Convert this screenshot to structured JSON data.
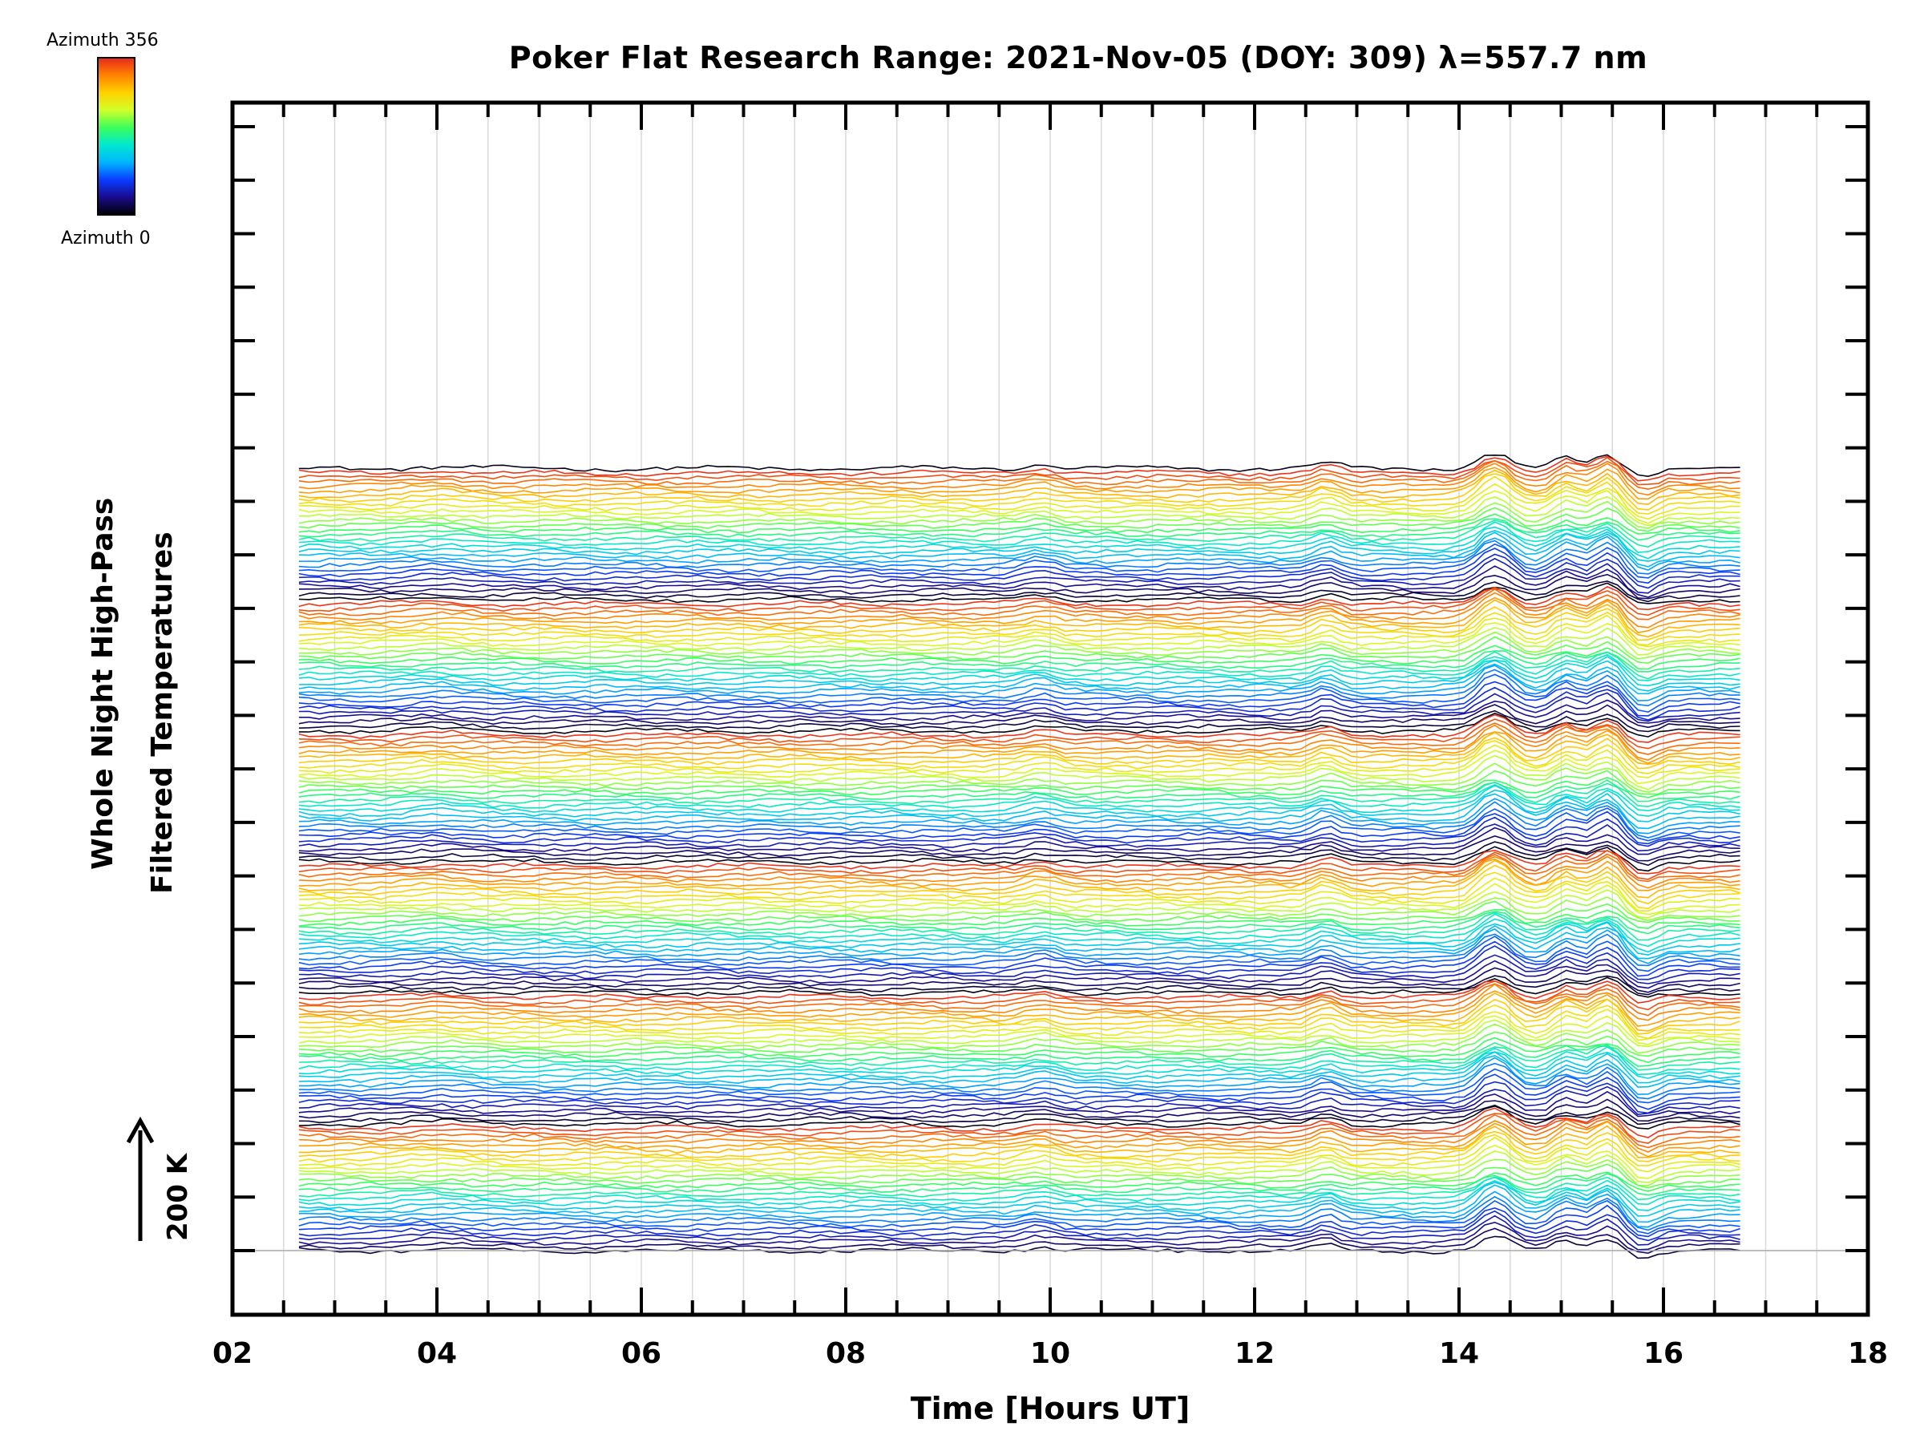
{
  "colors": {
    "frame": "#000000",
    "gridline": "#d9d9d9",
    "colormap": [
      "#000000",
      "#1a0a8c",
      "#0a3cff",
      "#00b4ff",
      "#00e8d0",
      "#3cff5a",
      "#d2ff28",
      "#ffd200",
      "#ff8200",
      "#e6281e"
    ]
  },
  "colorbar": {
    "top_label": "Azimuth 356",
    "bottom_label": "Azimuth 0"
  },
  "scale_bar": {
    "label": "200 K"
  },
  "chart_data": {
    "type": "line",
    "title": "Poker Flat Research Range: 2021-Nov-05 (DOY: 309) λ=557.7 nm",
    "xlabel": "Time [Hours UT]",
    "ylabel": [
      "Whole Night High-Pass",
      "Filtered Temperatures"
    ],
    "xlim": [
      2,
      18
    ],
    "x_ticks": [
      "02",
      "04",
      "06",
      "08",
      "10",
      "12",
      "14",
      "16",
      "18"
    ],
    "x_minor_step": 0.5,
    "data_time_range": [
      2.65,
      16.75
    ],
    "n_traces": 180,
    "azimuth_range": [
      0,
      356
    ],
    "trace_offset_K": 8,
    "y_major_tick_spacing_K": 100,
    "scale_bar_K": 200,
    "features": [
      {
        "description": "large wave peak",
        "time": 14.35,
        "amplitude_K": 45
      },
      {
        "description": "wave peak",
        "time": 15.05,
        "amplitude_K": 30
      },
      {
        "description": "wave peak",
        "time": 15.45,
        "amplitude_K": 40
      },
      {
        "description": "trough",
        "time": 15.8,
        "amplitude_K": -20
      },
      {
        "description": "minor bump",
        "time": 12.7,
        "amplitude_K": 18
      },
      {
        "description": "minor bump",
        "time": 9.9,
        "amplitude_K": 12
      },
      {
        "description": "minor bump",
        "time": 4.0,
        "amplitude_K": 6
      }
    ]
  }
}
